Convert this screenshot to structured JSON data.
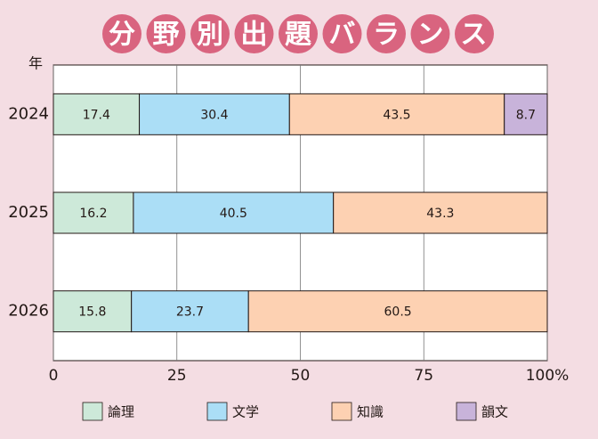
{
  "chart_data": {
    "type": "stacked-bar-horizontal",
    "title": "分野別出題バランス",
    "y_label": "年",
    "categories": [
      "2024",
      "2025",
      "2026"
    ],
    "series": [
      {
        "name": "論理",
        "color": "#cde9d9",
        "values": [
          17.4,
          16.2,
          15.8
        ]
      },
      {
        "name": "文学",
        "color": "#abdef6",
        "values": [
          30.4,
          40.5,
          23.7
        ]
      },
      {
        "name": "知識",
        "color": "#fdd1b2",
        "values": [
          43.5,
          43.3,
          60.5
        ]
      },
      {
        "name": "韻文",
        "color": "#c8b3da",
        "values": [
          8.7,
          null,
          null
        ]
      }
    ],
    "xlim": [
      0,
      100
    ],
    "xticks": [
      0,
      25,
      50,
      75,
      {
        "value": 100,
        "label": "100%"
      }
    ],
    "grid": true
  }
}
